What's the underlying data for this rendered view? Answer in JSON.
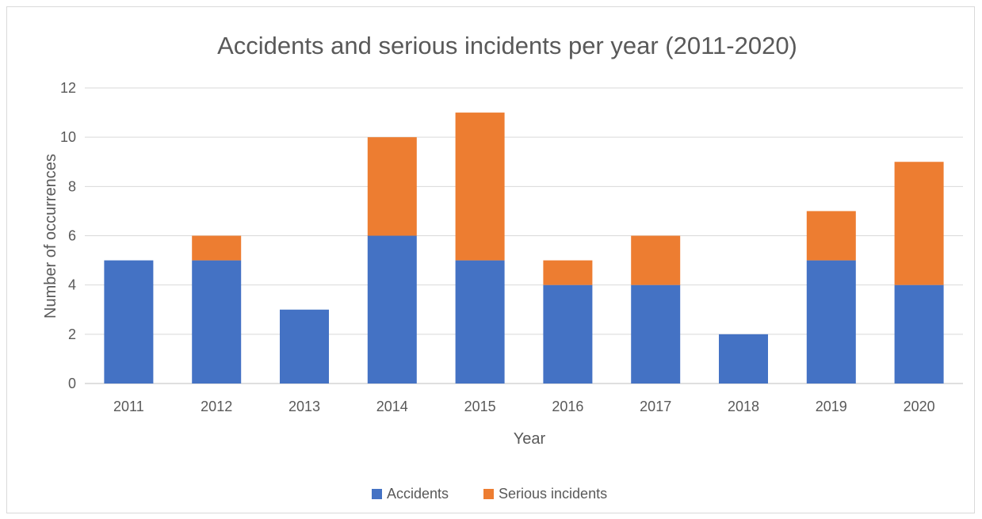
{
  "chart_data": {
    "type": "bar",
    "stacked": true,
    "title": "Accidents and serious incidents per year (2011-2020)",
    "xlabel": "Year",
    "ylabel": "Number of occurrences",
    "categories": [
      "2011",
      "2012",
      "2013",
      "2014",
      "2015",
      "2016",
      "2017",
      "2018",
      "2019",
      "2020"
    ],
    "series": [
      {
        "name": "Accidents",
        "color": "#4472C4",
        "values": [
          5,
          5,
          3,
          6,
          5,
          4,
          4,
          2,
          5,
          4
        ]
      },
      {
        "name": "Serious incidents",
        "color": "#ED7D31",
        "values": [
          0,
          1,
          0,
          4,
          6,
          1,
          2,
          0,
          2,
          5
        ]
      }
    ],
    "ylim": [
      0,
      12
    ],
    "yticks": [
      "0",
      "2",
      "4",
      "6",
      "8",
      "10",
      "12"
    ],
    "grid": true,
    "legend_position": "bottom"
  }
}
